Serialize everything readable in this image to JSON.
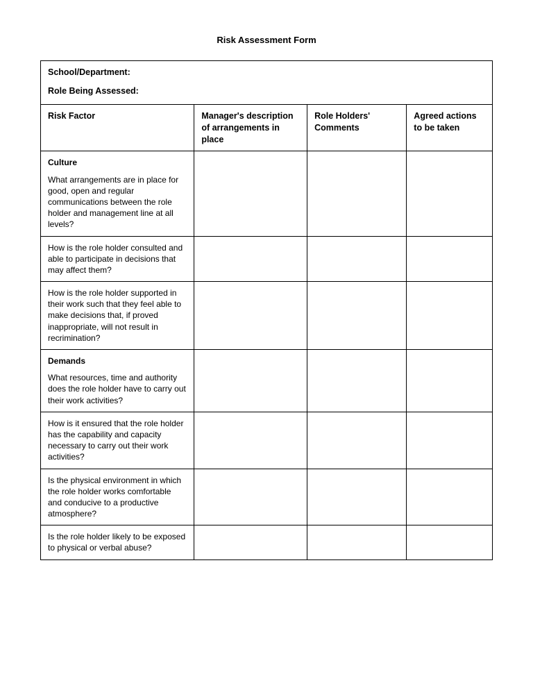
{
  "title": "Risk Assessment Form",
  "header": {
    "field1_label": "School/Department:",
    "field2_label": "Role Being Assessed:"
  },
  "columns": {
    "c1": "Risk Factor",
    "c2": "Manager's description of arrangements in place",
    "c3": "Role Holders' Comments",
    "c4": "Agreed actions to be taken"
  },
  "rows": [
    {
      "section": "Culture",
      "question": "What arrangements are in place for good, open and regular communications between the role holder and management line at all levels?",
      "c2": "",
      "c3": "",
      "c4": ""
    },
    {
      "section": "",
      "question": "How is the role holder consulted and able to participate in decisions that may affect them?",
      "c2": "",
      "c3": "",
      "c4": ""
    },
    {
      "section": "",
      "question": "How is the role holder supported in their work such that they feel able to make decisions that, if proved inappropriate, will not result in recrimination?",
      "c2": "",
      "c3": "",
      "c4": ""
    },
    {
      "section": "Demands",
      "question": "What resources, time and authority does the role holder have to carry out their work activities?",
      "c2": "",
      "c3": "",
      "c4": ""
    },
    {
      "section": "",
      "question": "How is it ensured that the role holder has the capability and capacity necessary to carry out their work activities?",
      "c2": "",
      "c3": "",
      "c4": ""
    },
    {
      "section": "",
      "question": "Is the physical environment in which the role holder works comfortable and conducive to a productive atmosphere?",
      "c2": "",
      "c3": "",
      "c4": ""
    },
    {
      "section": "",
      "question": "Is the role holder likely to be exposed to physical or verbal abuse?",
      "c2": "",
      "c3": "",
      "c4": ""
    }
  ]
}
